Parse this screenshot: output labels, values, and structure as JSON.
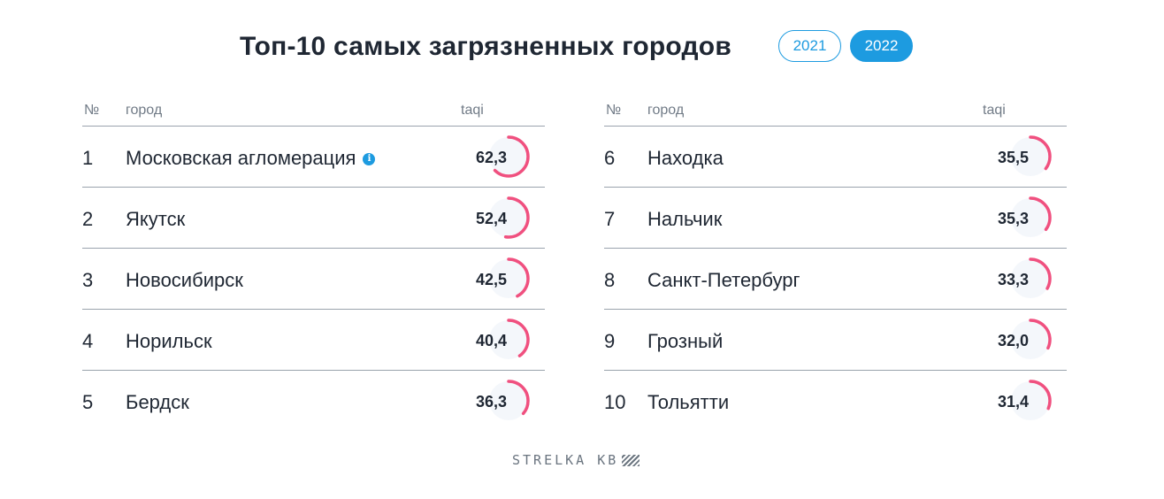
{
  "title": "Топ-10 самых загрязненных городов",
  "years": [
    {
      "label": "2021",
      "active": false
    },
    {
      "label": "2022",
      "active": true
    }
  ],
  "columns": {
    "num": "№",
    "city": "город",
    "taqi": "taqi"
  },
  "ranking": [
    {
      "rank": "1",
      "city": "Московская агломерация",
      "taqi": "62,3",
      "value": 62.3,
      "info": true
    },
    {
      "rank": "2",
      "city": "Якутск",
      "taqi": "52,4",
      "value": 52.4
    },
    {
      "rank": "3",
      "city": "Новосибирск",
      "taqi": "42,5",
      "value": 42.5
    },
    {
      "rank": "4",
      "city": "Норильск",
      "taqi": "40,4",
      "value": 40.4
    },
    {
      "rank": "5",
      "city": "Бердск",
      "taqi": "36,3",
      "value": 36.3
    },
    {
      "rank": "6",
      "city": "Находка",
      "taqi": "35,5",
      "value": 35.5
    },
    {
      "rank": "7",
      "city": "Нальчик",
      "taqi": "35,3",
      "value": 35.3
    },
    {
      "rank": "8",
      "city": "Санкт-Петербург",
      "taqi": "33,3",
      "value": 33.3
    },
    {
      "rank": "9",
      "city": "Грозный",
      "taqi": "32,0",
      "value": 32.0
    },
    {
      "rank": "10",
      "city": "Тольятти",
      "taqi": "31,4",
      "value": 31.4
    }
  ],
  "info_icon": "info-icon",
  "colors": {
    "accent": "#1d9be0",
    "gauge": "#f0507f",
    "gauge_track": "#f4f7fb",
    "text": "#1f2733"
  },
  "footer": {
    "brand": "STRELKA KB",
    "logo_icon": "hatched-logo-icon"
  }
}
